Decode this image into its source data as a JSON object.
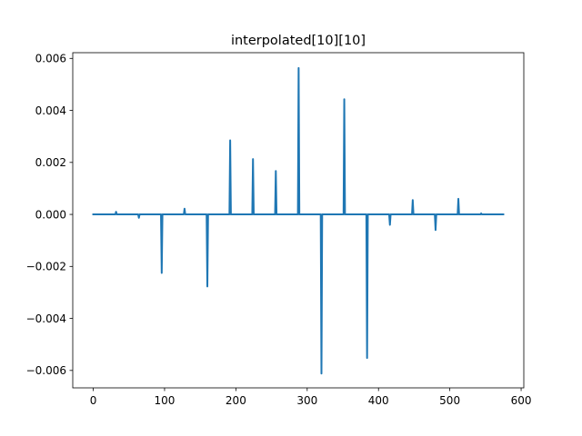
{
  "chart_data": {
    "type": "line",
    "title": "interpolated[10][10]",
    "xlabel": "",
    "ylabel": "",
    "xlim": [
      -28.75,
      603.75
    ],
    "ylim": [
      -0.00667,
      0.00622
    ],
    "xticks": [
      0,
      100,
      200,
      300,
      400,
      500,
      600
    ],
    "xtick_labels": [
      "0",
      "100",
      "200",
      "300",
      "400",
      "500",
      "600"
    ],
    "yticks": [
      -0.006,
      -0.004,
      -0.002,
      0.0,
      0.002,
      0.004,
      0.006
    ],
    "ytick_labels": [
      "−0.006",
      "−0.004",
      "−0.002",
      "0.000",
      "0.002",
      "0.004",
      "0.006"
    ],
    "grid": false,
    "series": [
      {
        "color": "#1f77b4",
        "x": [
          0,
          31,
          32,
          33,
          63,
          64,
          65,
          95,
          96,
          97,
          127,
          128,
          129,
          159,
          160,
          161,
          191,
          192,
          193,
          223,
          224,
          225,
          255,
          256,
          257,
          287,
          288,
          289,
          319,
          320,
          321,
          351,
          352,
          353,
          383,
          384,
          385,
          415,
          416,
          417,
          447,
          448,
          449,
          479,
          480,
          481,
          511,
          512,
          513,
          543,
          544,
          545,
          575
        ],
        "y": [
          0,
          0,
          0.0001,
          0,
          0,
          -0.00013,
          0,
          0,
          -0.00225,
          0,
          0,
          0.00022,
          0,
          0,
          -0.00277,
          0,
          0,
          0.00285,
          0,
          0,
          0.00213,
          0,
          0,
          0.00167,
          0,
          0,
          0.00563,
          0,
          0,
          -0.00612,
          0,
          0,
          0.00443,
          0,
          0,
          -0.00552,
          0,
          0,
          -0.0004,
          0,
          0,
          0.00055,
          0,
          0,
          -0.0006,
          0,
          0,
          0.0006,
          0,
          0,
          4e-05,
          0,
          0
        ]
      }
    ]
  }
}
